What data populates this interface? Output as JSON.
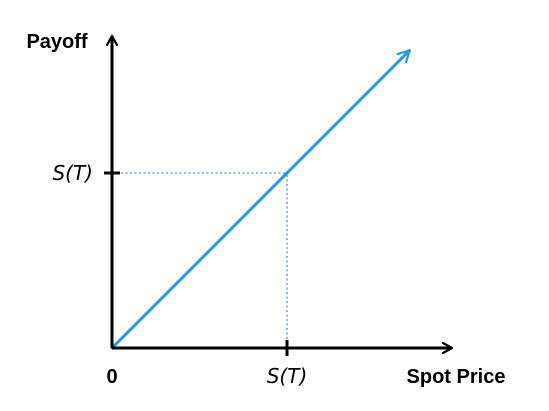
{
  "chart_data": {
    "type": "line",
    "xlabel": "Spot Price",
    "ylabel": "Payoff",
    "origin_label": "0",
    "x_tick": {
      "label": "S(T)",
      "value": 1
    },
    "y_tick": {
      "label": "S(T)",
      "value": 1
    },
    "xlim": [
      0,
      1.8
    ],
    "ylim": [
      0,
      1.8
    ],
    "series": [
      {
        "x": [
          0,
          1.7
        ],
        "y": [
          0,
          1.7
        ]
      }
    ],
    "guides": [
      {
        "from": [
          1,
          0
        ],
        "to": [
          1,
          1
        ],
        "style": "dotted"
      },
      {
        "from": [
          0,
          1
        ],
        "to": [
          1,
          1
        ],
        "style": "dotted"
      }
    ],
    "line_color": "#2196F3",
    "guide_color": "#4A90D9",
    "axis_color": "#000000",
    "grid": false
  }
}
